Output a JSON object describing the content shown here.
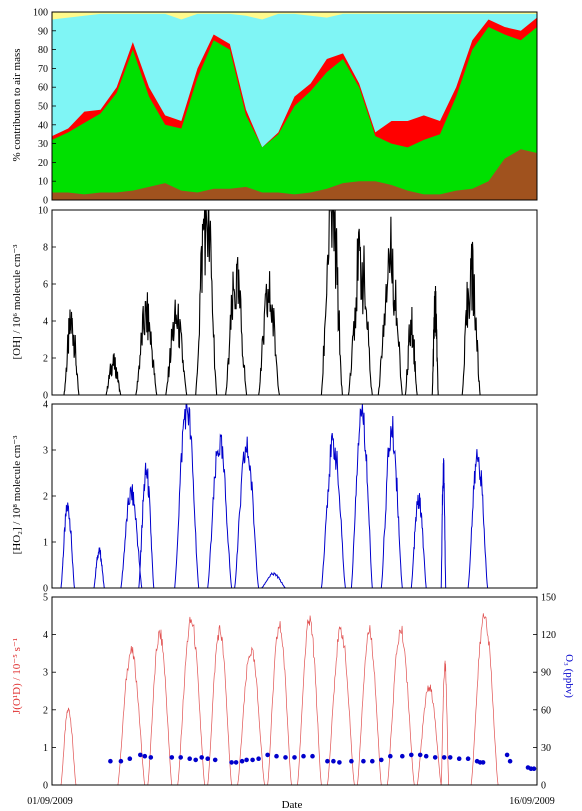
{
  "chart_data": [
    {
      "type": "area",
      "ylabel": "% contributon to air mass",
      "ylim": [
        0,
        100
      ],
      "yticks": [
        0,
        10,
        20,
        30,
        40,
        50,
        60,
        70,
        80,
        90,
        100
      ],
      "x": [
        0,
        1,
        2,
        3,
        4,
        5,
        6,
        7,
        8,
        9,
        10,
        11,
        12,
        13,
        14,
        15,
        16,
        17,
        18,
        19,
        20,
        21,
        22,
        23,
        24,
        25,
        26,
        27,
        28,
        29,
        30
      ],
      "series": [
        {
          "color": "#a0521e",
          "values": [
            4,
            4,
            3,
            4,
            4,
            5,
            7,
            9,
            5,
            4,
            6,
            6,
            7,
            4,
            4,
            3,
            4,
            6,
            9,
            10,
            10,
            8,
            5,
            3,
            3,
            5,
            6,
            10,
            22,
            27,
            25
          ]
        },
        {
          "color": "#00e000",
          "values": [
            32,
            36,
            41,
            46,
            57,
            80,
            55,
            40,
            38,
            65,
            85,
            80,
            45,
            28,
            35,
            50,
            58,
            68,
            75,
            60,
            34,
            30,
            28,
            32,
            35,
            55,
            80,
            92,
            88,
            85,
            92
          ]
        },
        {
          "color": "#ff0000",
          "values": [
            34,
            38,
            47,
            48,
            60,
            84,
            60,
            45,
            42,
            70,
            88,
            83,
            48,
            28,
            36,
            55,
            62,
            75,
            78,
            62,
            36,
            42,
            42,
            45,
            42,
            60,
            85,
            96,
            92,
            90,
            97
          ]
        },
        {
          "color": "#7ff5f5",
          "values": [
            96,
            97,
            98,
            99,
            99,
            99,
            99,
            99,
            96,
            99,
            99,
            99,
            98,
            96,
            99,
            99,
            98,
            97,
            99,
            99,
            99,
            99,
            99,
            99,
            99,
            99,
            99,
            99,
            99,
            99,
            99
          ]
        },
        {
          "color": "#fffa8c",
          "values": [
            100,
            100,
            100,
            100,
            100,
            100,
            100,
            100,
            100,
            100,
            100,
            100,
            100,
            100,
            100,
            100,
            100,
            100,
            100,
            100,
            100,
            100,
            100,
            100,
            100,
            100,
            100,
            100,
            100,
            100,
            100
          ]
        }
      ]
    },
    {
      "type": "line",
      "ylabel": "[OH] / 10⁶ molecule cm⁻³",
      "ylim": [
        0,
        10
      ],
      "yticks": [
        0,
        2,
        4,
        6,
        8,
        10
      ],
      "color": "#000000",
      "days": [
        {
          "start": 0.4,
          "end": 0.9,
          "peak": 3.8
        },
        {
          "start": 1.8,
          "end": 2.3,
          "peak": 1.7
        },
        {
          "start": 2.8,
          "end": 3.5,
          "peak": 4.2
        },
        {
          "start": 3.8,
          "end": 4.5,
          "peak": 4.0
        },
        {
          "start": 4.8,
          "end": 5.5,
          "peak": 9.8
        },
        {
          "start": 5.8,
          "end": 6.5,
          "peak": 5.8
        },
        {
          "start": 6.9,
          "end": 7.6,
          "peak": 5.2
        },
        {
          "start": 9.0,
          "end": 9.7,
          "peak": 9.7
        },
        {
          "start": 9.9,
          "end": 10.7,
          "peak": 7.0
        },
        {
          "start": 10.9,
          "end": 11.7,
          "peak": 7.5
        },
        {
          "start": 11.8,
          "end": 12.2,
          "peak": 3.6
        },
        {
          "start": 12.7,
          "end": 12.9,
          "peak": 4.6
        },
        {
          "start": 13.7,
          "end": 14.3,
          "peak": 6.5
        }
      ]
    },
    {
      "type": "line",
      "ylabel": "[HO₂] / 10⁸ molecule cm⁻³",
      "ylim": [
        0,
        4
      ],
      "yticks": [
        0,
        1,
        2,
        3,
        4
      ],
      "color": "#0000cc",
      "days": [
        {
          "start": 0.3,
          "end": 0.75,
          "peak": 1.75
        },
        {
          "start": 1.4,
          "end": 1.75,
          "peak": 0.8
        },
        {
          "start": 2.3,
          "end": 3.0,
          "peak": 2.05
        },
        {
          "start": 2.9,
          "end": 3.4,
          "peak": 2.5
        },
        {
          "start": 4.1,
          "end": 4.9,
          "peak": 3.95
        },
        {
          "start": 5.2,
          "end": 6.0,
          "peak": 3.1
        },
        {
          "start": 6.1,
          "end": 6.9,
          "peak": 3.0
        },
        {
          "start": 7.0,
          "end": 7.8,
          "peak": 0.3
        },
        {
          "start": 9.0,
          "end": 9.8,
          "peak": 3.1
        },
        {
          "start": 10.0,
          "end": 10.7,
          "peak": 3.9
        },
        {
          "start": 11.0,
          "end": 11.7,
          "peak": 3.4
        },
        {
          "start": 12.0,
          "end": 12.5,
          "peak": 1.9
        },
        {
          "start": 13.0,
          "end": 13.15,
          "peak": 2.6
        },
        {
          "start": 13.9,
          "end": 14.55,
          "peak": 2.85
        }
      ]
    },
    {
      "type": "line",
      "ylabel": "J(O¹D) / 10⁻⁵ s⁻¹",
      "ylabel_right": "O₃ (ppbv)",
      "ylim": [
        0,
        5
      ],
      "ylim_right": [
        0,
        150
      ],
      "yticks": [
        0,
        1,
        2,
        3,
        4,
        5
      ],
      "yticks_right": [
        0,
        30,
        60,
        90,
        120,
        150
      ],
      "xlabel": "Date",
      "x_start_label": "01/09/2009",
      "x_end_label": "16/09/2009",
      "j_color": "#e05050",
      "o3_color": "#0000cc",
      "j_days": [
        {
          "start": 0.3,
          "end": 0.8,
          "peak": 2.0
        },
        {
          "start": 2.2,
          "end": 3.1,
          "peak": 3.55
        },
        {
          "start": 3.2,
          "end": 4.0,
          "peak": 4.0
        },
        {
          "start": 4.2,
          "end": 5.1,
          "peak": 4.35
        },
        {
          "start": 5.2,
          "end": 6.0,
          "peak": 4.1
        },
        {
          "start": 6.2,
          "end": 7.1,
          "peak": 3.55
        },
        {
          "start": 7.2,
          "end": 8.0,
          "peak": 4.2
        },
        {
          "start": 8.2,
          "end": 9.0,
          "peak": 4.35
        },
        {
          "start": 9.2,
          "end": 10.1,
          "peak": 4.1
        },
        {
          "start": 10.2,
          "end": 11.0,
          "peak": 4.1
        },
        {
          "start": 11.2,
          "end": 12.1,
          "peak": 4.1
        },
        {
          "start": 12.2,
          "end": 13.0,
          "peak": 2.6
        },
        {
          "start": 13.0,
          "end": 13.25,
          "peak": 3.2
        },
        {
          "start": 14.0,
          "end": 14.9,
          "peak": 4.5
        }
      ],
      "o3_segments": [
        {
          "x": [
            1.95,
            2.3,
            2.6
          ],
          "y": [
            19,
            19,
            21
          ]
        },
        {
          "x": [
            2.95,
            3.1,
            3.3
          ],
          "y": [
            24,
            23,
            22
          ]
        },
        {
          "x": [
            4.0,
            4.3,
            4.6,
            4.8
          ],
          "y": [
            22,
            22,
            21,
            20
          ]
        },
        {
          "x": [
            5.0,
            5.2,
            5.45
          ],
          "y": [
            22,
            21,
            20
          ]
        },
        {
          "x": [
            6.0,
            6.15,
            6.35
          ],
          "y": [
            18,
            18,
            19
          ]
        },
        {
          "x": [
            6.5,
            6.7,
            6.9
          ],
          "y": [
            20,
            20,
            21
          ]
        },
        {
          "x": [
            7.2,
            7.5,
            7.8,
            8.1,
            8.4,
            8.7
          ],
          "y": [
            24,
            23,
            22,
            22,
            23,
            23
          ]
        },
        {
          "x": [
            9.2,
            9.4,
            9.6
          ],
          "y": [
            19,
            19,
            18
          ]
        },
        {
          "x": [
            10.0,
            10.4,
            10.7,
            11.0
          ],
          "y": [
            19,
            19,
            19,
            20
          ]
        },
        {
          "x": [
            11.3,
            11.7,
            12.0,
            12.3
          ],
          "y": [
            23,
            23,
            24,
            24
          ]
        },
        {
          "x": [
            12.5,
            12.8,
            13.1
          ],
          "y": [
            23,
            22,
            22
          ]
        },
        {
          "x": [
            13.3,
            13.6,
            13.9
          ],
          "y": [
            22,
            21,
            21
          ]
        },
        {
          "x": [
            14.2,
            14.3,
            14.4
          ],
          "y": [
            19,
            18,
            18
          ]
        },
        {
          "x": [
            15.2,
            15.3
          ],
          "y": [
            24,
            19
          ]
        },
        {
          "x": [
            15.9,
            16.0,
            16.1
          ],
          "y": [
            14,
            13,
            13
          ]
        }
      ]
    }
  ]
}
